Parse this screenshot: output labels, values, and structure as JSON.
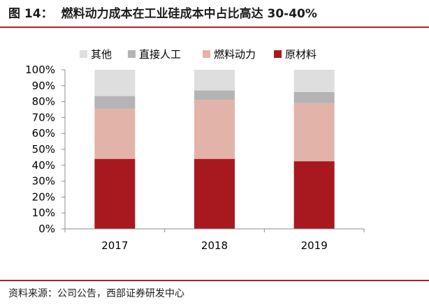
{
  "figure": {
    "title_prefix": "图 14：",
    "title": "燃料动力成本在工业硅成本中占比高达 30-40%",
    "source": "资料来源：公司公告，西部证券研发中心"
  },
  "chart_data": {
    "type": "bar",
    "stacked": true,
    "normalized_percent": true,
    "categories": [
      "2017",
      "2018",
      "2019"
    ],
    "series": [
      {
        "name": "原材料",
        "color": "#a8191f",
        "values": [
          44,
          44,
          42.5
        ]
      },
      {
        "name": "燃料动力",
        "color": "#e2b3a9",
        "values": [
          31.5,
          37,
          36.5
        ]
      },
      {
        "name": "直接人工",
        "color": "#b4b4b4",
        "values": [
          8,
          6,
          7
        ]
      },
      {
        "name": "其他",
        "color": "#dedede",
        "values": [
          16.5,
          13,
          14
        ]
      }
    ],
    "legend_order": [
      "其他",
      "直接人工",
      "燃料动力",
      "原材料"
    ],
    "legend_position": "top",
    "ylim": [
      0,
      100
    ],
    "yticks": [
      "0%",
      "10%",
      "20%",
      "30%",
      "40%",
      "50%",
      "60%",
      "70%",
      "80%",
      "90%",
      "100%"
    ],
    "grid": false
  }
}
